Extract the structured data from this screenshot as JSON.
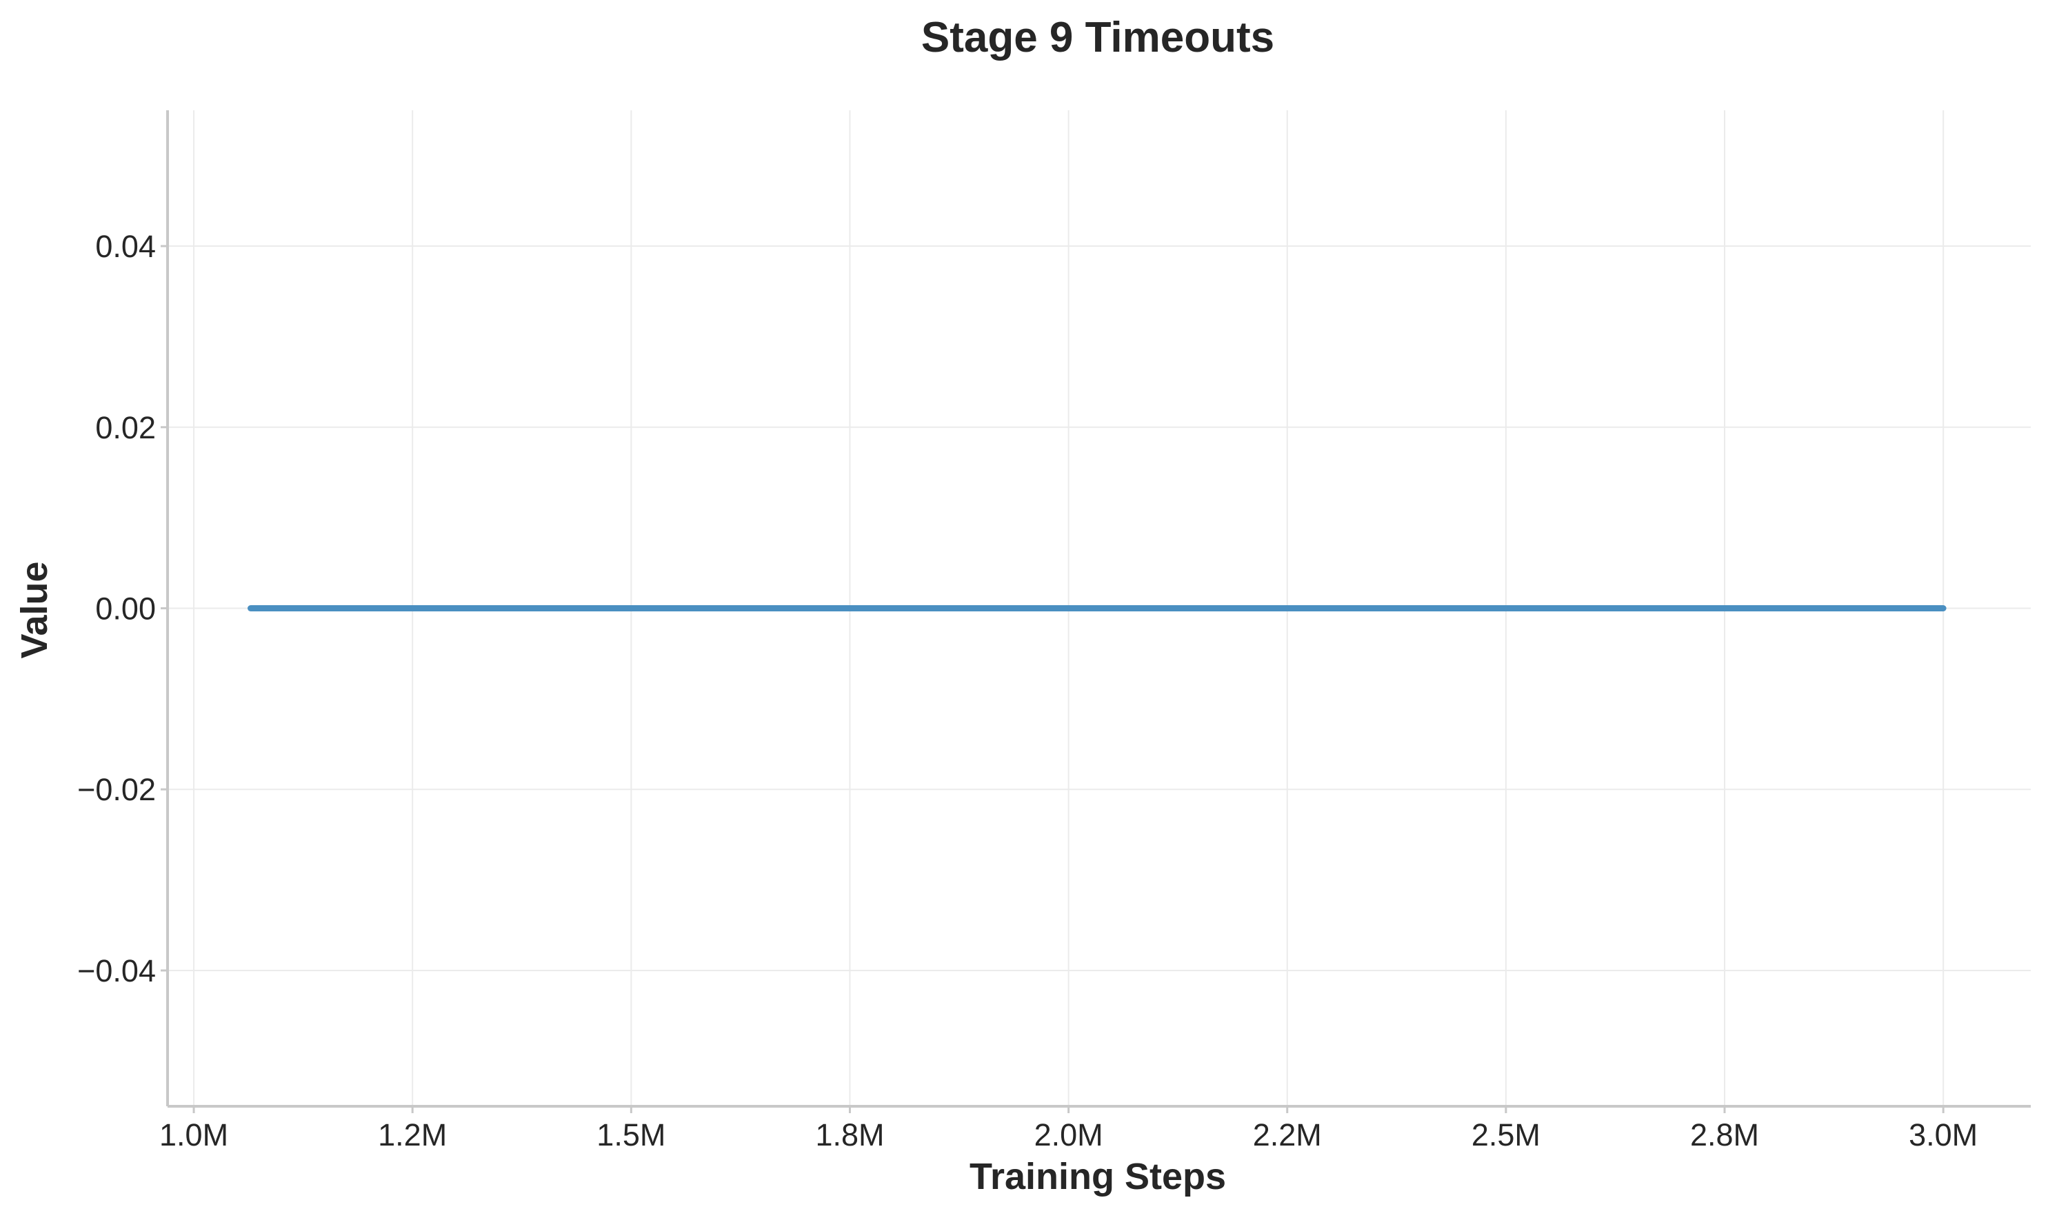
{
  "chart_data": {
    "type": "line",
    "title": "Stage 9 Timeouts",
    "xlabel": "Training Steps",
    "ylabel": "Value",
    "xlim": [
      970000,
      3100000
    ],
    "ylim": [
      -0.055,
      0.055
    ],
    "x_ticks": [
      {
        "value": 1000000,
        "label": "1.0M"
      },
      {
        "value": 1250000,
        "label": "1.2M"
      },
      {
        "value": 1500000,
        "label": "1.5M"
      },
      {
        "value": 1750000,
        "label": "1.8M"
      },
      {
        "value": 2000000,
        "label": "2.0M"
      },
      {
        "value": 2250000,
        "label": "2.2M"
      },
      {
        "value": 2500000,
        "label": "2.5M"
      },
      {
        "value": 2750000,
        "label": "2.8M"
      },
      {
        "value": 3000000,
        "label": "3.0M"
      }
    ],
    "y_ticks": [
      {
        "value": 0.04,
        "label": "0.04"
      },
      {
        "value": 0.02,
        "label": "0.02"
      },
      {
        "value": 0.0,
        "label": "0.00"
      },
      {
        "value": -0.02,
        "label": "−0.02"
      },
      {
        "value": -0.04,
        "label": "−0.04"
      }
    ],
    "grid": true,
    "legend": "none",
    "series": [
      {
        "color": "#4a8fc1",
        "x": [
          1065000,
          1250000,
          1500000,
          1750000,
          2000000,
          2250000,
          2500000,
          2750000,
          3000000
        ],
        "y": [
          0,
          0,
          0,
          0,
          0,
          0,
          0,
          0,
          0
        ]
      }
    ]
  }
}
